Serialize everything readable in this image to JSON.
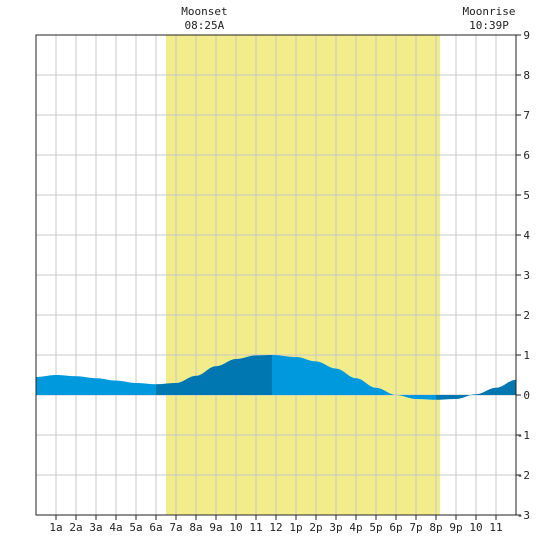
{
  "chart_data": {
    "type": "area",
    "title": "",
    "xlabel": "",
    "ylabel": "",
    "x_range": [
      0,
      24
    ],
    "ylim": [
      -3,
      9
    ],
    "y_ticks": [
      "-3",
      "-2",
      "-1",
      "0",
      "1",
      "2",
      "3",
      "4",
      "5",
      "6",
      "7",
      "8",
      "9"
    ],
    "x_tick_labels": [
      "1a",
      "2a",
      "3a",
      "4a",
      "5a",
      "6a",
      "7a",
      "8a",
      "9a",
      "10",
      "11",
      "12",
      "1p",
      "2p",
      "3p",
      "4p",
      "5p",
      "6p",
      "7p",
      "8p",
      "9p",
      "10",
      "11"
    ],
    "grid": true,
    "daylight_band": {
      "start_hour": 6.5,
      "end_hour": 20.2,
      "color": "#f2ec8a"
    },
    "annotations": [
      {
        "label": "Moonset",
        "time": "08:25A",
        "hour": 8.42
      },
      {
        "label": "Moonrise",
        "time": "10:39P",
        "hour": 22.65
      }
    ],
    "series": [
      {
        "x": [
          0,
          1,
          2,
          3,
          4,
          5,
          6,
          7,
          8,
          9,
          10,
          11,
          11.8,
          13,
          14,
          15,
          16,
          17,
          18,
          19,
          20,
          21,
          22,
          23,
          24
        ],
        "y": [
          0.45,
          0.5,
          0.47,
          0.42,
          0.36,
          0.3,
          0.27,
          0.3,
          0.48,
          0.72,
          0.9,
          0.99,
          1.0,
          0.95,
          0.84,
          0.66,
          0.42,
          0.18,
          0.0,
          -0.1,
          -0.12,
          -0.1,
          0.02,
          0.18,
          0.38
        ]
      }
    ],
    "colors": {
      "tide_light": "#0099dd",
      "tide_dark": "#0077b0",
      "grid": "#c8c8c8",
      "axis": "#222222"
    }
  }
}
